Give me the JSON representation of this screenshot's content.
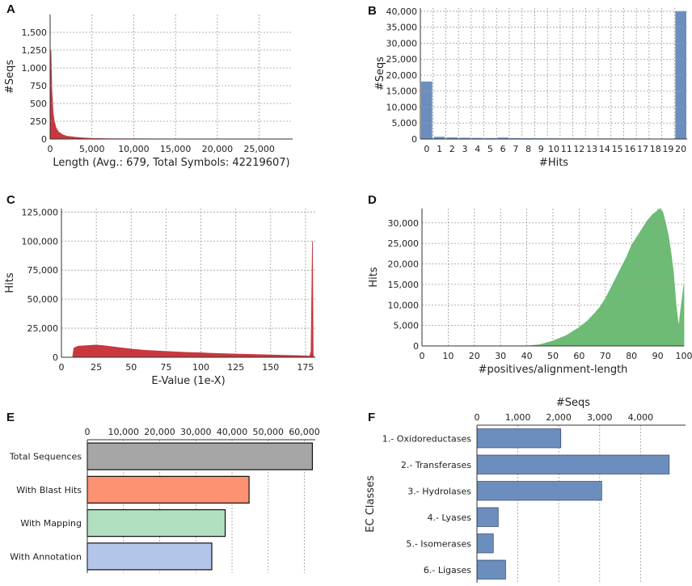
{
  "chart_data": [
    {
      "panel": "A",
      "type": "area",
      "xlabel": "Length (Avg.: 679, Total Symbols: 42219607)",
      "ylabel": "#Seqs",
      "xlim": [
        0,
        29000
      ],
      "ylim": [
        0,
        1750
      ],
      "xticks": [
        "0",
        "5,000",
        "10,000",
        "15,000",
        "20,000",
        "25,000"
      ],
      "xtick_values": [
        0,
        5000,
        10000,
        15000,
        20000,
        25000
      ],
      "yticks": [
        "0",
        "250",
        "500",
        "750",
        "1,000",
        "1,250",
        "1,500"
      ],
      "ytick_values": [
        0,
        250,
        500,
        750,
        1000,
        1250,
        1500
      ],
      "color": "#c8383e",
      "x": [
        0,
        100,
        200,
        350,
        500,
        700,
        1000,
        1500,
        2000,
        3000,
        4000,
        5000,
        7000,
        10000,
        15000,
        29000
      ],
      "y": [
        0,
        1250,
        700,
        380,
        250,
        160,
        100,
        60,
        40,
        25,
        15,
        8,
        4,
        2,
        1,
        0
      ]
    },
    {
      "panel": "B",
      "type": "bar",
      "xlabel": "#Hits",
      "ylabel": "#Seqs",
      "ylim": [
        0,
        41000
      ],
      "categories": [
        "0",
        "1",
        "2",
        "3",
        "4",
        "5",
        "6",
        "7",
        "8",
        "9",
        "10",
        "11",
        "12",
        "13",
        "14",
        "15",
        "16",
        "17",
        "18",
        "19",
        "20"
      ],
      "values": [
        18000,
        700,
        500,
        400,
        350,
        300,
        450,
        280,
        250,
        230,
        220,
        200,
        190,
        180,
        170,
        160,
        150,
        140,
        130,
        120,
        40000
      ],
      "yticks": [
        "0",
        "5,000",
        "10,000",
        "15,000",
        "20,000",
        "25,000",
        "30,000",
        "35,000",
        "40,000"
      ],
      "ytick_values": [
        0,
        5000,
        10000,
        15000,
        20000,
        25000,
        30000,
        35000,
        40000
      ],
      "color": "#6c8ebf"
    },
    {
      "panel": "C",
      "type": "area",
      "xlabel": "E-Value (1e-X)",
      "ylabel": "Hits",
      "xlim": [
        0,
        182
      ],
      "ylim": [
        0,
        128000
      ],
      "xticks": [
        "0",
        "25",
        "50",
        "75",
        "100",
        "125",
        "150",
        "175"
      ],
      "xtick_values": [
        0,
        25,
        50,
        75,
        100,
        125,
        150,
        175
      ],
      "yticks": [
        "0",
        "25,000",
        "50,000",
        "75,000",
        "100,000",
        "125,000"
      ],
      "ytick_values": [
        0,
        25000,
        50000,
        75000,
        100000,
        125000
      ],
      "color": "#c8383e",
      "x": [
        8,
        9,
        12,
        18,
        25,
        30,
        40,
        50,
        60,
        75,
        90,
        100,
        110,
        125,
        140,
        150,
        160,
        170,
        178,
        179,
        180,
        180.5,
        181
      ],
      "y": [
        0,
        8000,
        9500,
        10000,
        10500,
        10000,
        8500,
        7000,
        6000,
        5000,
        4200,
        3800,
        3300,
        2800,
        2300,
        2000,
        1700,
        1400,
        1000,
        5000,
        100000,
        3000,
        0
      ]
    },
    {
      "panel": "D",
      "type": "area",
      "xlabel": "#positives/alignment-length",
      "ylabel": "Hits",
      "xlim": [
        0,
        100
      ],
      "ylim": [
        0,
        33500
      ],
      "xticks": [
        "0",
        "10",
        "20",
        "30",
        "40",
        "50",
        "60",
        "70",
        "80",
        "90",
        "100"
      ],
      "xtick_values": [
        0,
        10,
        20,
        30,
        40,
        50,
        60,
        70,
        80,
        90,
        100
      ],
      "yticks": [
        "0",
        "5,000",
        "10,000",
        "15,000",
        "20,000",
        "25,000",
        "30,000"
      ],
      "ytick_values": [
        0,
        5000,
        10000,
        15000,
        20000,
        25000,
        30000
      ],
      "color": "#6dbb74",
      "x": [
        40,
        45,
        50,
        55,
        60,
        63,
        66,
        68,
        70,
        72,
        74,
        76,
        78,
        80,
        82,
        84,
        86,
        88,
        90,
        91,
        92,
        93,
        94,
        95,
        96,
        97,
        98,
        99,
        100,
        100
      ],
      "y": [
        0,
        300,
        1200,
        2500,
        4500,
        6000,
        8000,
        9500,
        11500,
        14000,
        16500,
        19000,
        21500,
        24500,
        26500,
        28500,
        30500,
        32000,
        33000,
        33500,
        32500,
        30000,
        27000,
        23000,
        18000,
        10000,
        4500,
        10000,
        15000,
        0
      ]
    },
    {
      "panel": "E",
      "type": "bar",
      "orientation": "horizontal",
      "xlim": [
        0,
        63000
      ],
      "xticks": [
        "0",
        "10,000",
        "20,000",
        "30,000",
        "40,000",
        "50,000",
        "60,000"
      ],
      "xtick_values": [
        0,
        10000,
        20000,
        30000,
        40000,
        50000,
        60000
      ],
      "categories": [
        "Total Sequences",
        "With Blast Hits",
        "With Mapping",
        "With Annotation"
      ],
      "values": [
        62200,
        44700,
        38100,
        34400
      ],
      "colors": [
        "#a6a6a6",
        "#fc9272",
        "#b2dfbf",
        "#b3c6ea"
      ]
    },
    {
      "panel": "F",
      "type": "bar",
      "orientation": "horizontal",
      "xlabel": "#Seqs",
      "ylabel": "EC Classes",
      "xlim": [
        0,
        5100
      ],
      "xticks": [
        "0",
        "1,000",
        "2,000",
        "3,000",
        "4,000"
      ],
      "xtick_values": [
        0,
        1000,
        2000,
        3000,
        4000
      ],
      "categories": [
        "1.- Oxidoreductases",
        "2.- Transferases",
        "3.- Hydrolases",
        "4.- Lyases",
        "5.- Isomerases",
        "6.- Ligases"
      ],
      "values": [
        2050,
        4700,
        3050,
        520,
        400,
        700
      ],
      "color": "#6c8ebf"
    }
  ]
}
